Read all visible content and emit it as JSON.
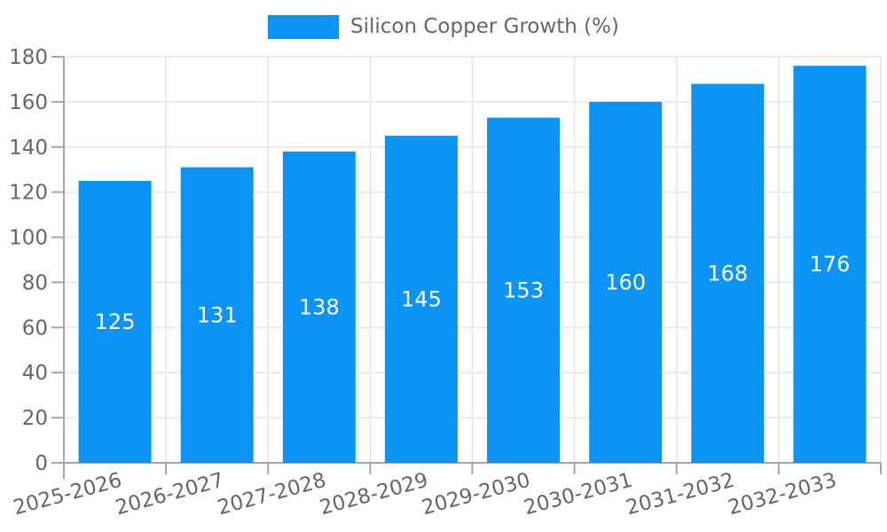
{
  "chart_data": {
    "type": "bar",
    "series_name": "Silicon Copper Growth (%)",
    "categories": [
      "2025-2026",
      "2026-2027",
      "2027-2028",
      "2028-2029",
      "2029-2030",
      "2030-2031",
      "2031-2032",
      "2032-2033"
    ],
    "values": [
      125,
      131,
      138,
      145,
      153,
      160,
      168,
      176
    ],
    "ylim": [
      0,
      180
    ],
    "yticks": [
      0,
      20,
      40,
      60,
      80,
      100,
      120,
      140,
      160,
      180
    ],
    "xlabel": "",
    "ylabel": "",
    "legend_position": "top",
    "grid": true,
    "bar_color": "#0b93f6",
    "grid_color": "#e5e5e5",
    "axis_color": "#a6a6a6",
    "axis_label_color": "#666666",
    "value_label_color": "#ffffff",
    "background_color": "#ffffff"
  }
}
